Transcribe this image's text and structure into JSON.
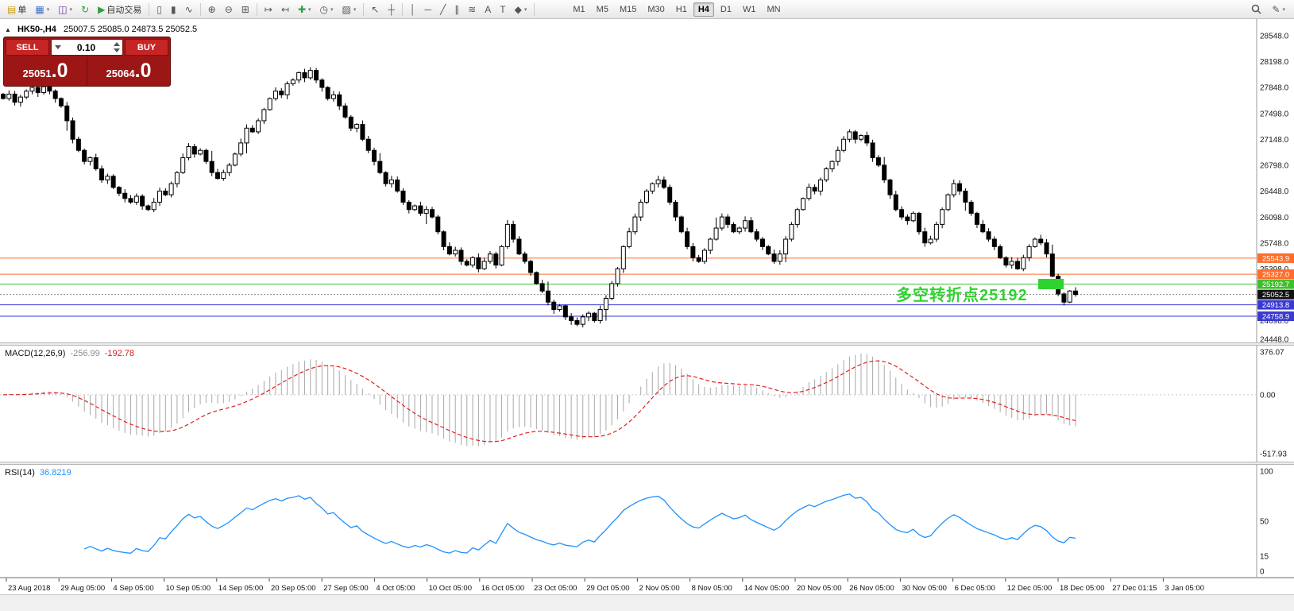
{
  "toolbar": {
    "buttons": [
      {
        "name": "new-order-button",
        "glyph": "▤",
        "glyph_color": "#c8a018",
        "label": "单",
        "caret": false
      },
      {
        "name": "charts-menu-button",
        "glyph": "▦",
        "glyph_color": "#4472c4",
        "caret": true
      },
      {
        "name": "profiles-button",
        "glyph": "◫",
        "glyph_color": "#7030a0",
        "caret": true
      },
      {
        "name": "refresh-button",
        "glyph": "↻",
        "glyph_color": "#2e9e3f",
        "caret": false
      },
      {
        "name": "autotrading-button",
        "glyph": "▶",
        "glyph_color": "#2e9e3f",
        "label": "自动交易",
        "caret": false
      },
      {
        "sep": true
      },
      {
        "name": "bar-chart-button",
        "glyph": "▯"
      },
      {
        "name": "candlestick-button",
        "glyph": "▮"
      },
      {
        "name": "line-chart-button",
        "glyph": "∿"
      },
      {
        "sep": true
      },
      {
        "name": "zoom-in-button",
        "glyph": "⊕"
      },
      {
        "name": "zoom-out-button",
        "glyph": "⊖"
      },
      {
        "name": "tile-windows-button",
        "glyph": "⊞"
      },
      {
        "sep": true
      },
      {
        "name": "chart-shift-button",
        "glyph": "↦"
      },
      {
        "name": "auto-scroll-button",
        "glyph": "↤"
      },
      {
        "name": "indicators-button",
        "glyph": "✚",
        "glyph_color": "#2e9e3f",
        "caret": true
      },
      {
        "name": "periods-button",
        "glyph": "◷",
        "caret": true
      },
      {
        "name": "templates-button",
        "glyph": "▨",
        "caret": true
      },
      {
        "sep": true
      },
      {
        "name": "cursor-button",
        "glyph": "↖"
      },
      {
        "name": "crosshair-button",
        "glyph": "┼"
      },
      {
        "sep": true
      },
      {
        "name": "vertical-line-button",
        "glyph": "│"
      },
      {
        "name": "horizontal-line-button",
        "glyph": "─"
      },
      {
        "name": "trendline-button",
        "glyph": "╱"
      },
      {
        "name": "channel-button",
        "glyph": "∥"
      },
      {
        "name": "fibonacci-button",
        "glyph": "≋"
      },
      {
        "name": "text-button",
        "glyph": "A"
      },
      {
        "name": "text-label-button",
        "glyph": "T"
      },
      {
        "name": "shapes-button",
        "glyph": "◆",
        "caret": true
      },
      {
        "sep": true
      }
    ],
    "timeframes": [
      "M1",
      "M5",
      "M15",
      "M30",
      "H1",
      "H4",
      "D1",
      "W1",
      "MN"
    ],
    "active_timeframe": "H4",
    "styler_glyph": "✎"
  },
  "chart": {
    "header": {
      "collapse_glyph": "▲",
      "symbol": "HK50-,H4",
      "ohlc": "25007.5 25085.0 24873.5 25052.5"
    },
    "trade_panel": {
      "sell_label": "SELL",
      "buy_label": "BUY",
      "lot": "0.10",
      "sell_price_int": "25051",
      "sell_price_frac": ".0",
      "buy_price_int": "25064",
      "buy_price_frac": ".0"
    },
    "macd": {
      "name": "MACD(12,26,9)",
      "v1": "-256.99",
      "v2": "-192.78"
    },
    "rsi": {
      "name": "RSI(14)",
      "v1": "36.8219"
    },
    "annotation": {
      "text": "多空转折点25192",
      "color": "#2fd32f"
    }
  },
  "chart_data": {
    "type": "candlestick",
    "title": "HK50-,H4",
    "current_bar": {
      "open": 25007.5,
      "high": 25085.0,
      "low": 24873.5,
      "close": 25052.5
    },
    "price_axis": {
      "min": 24448.0,
      "max": 28548.0,
      "tick_labels": [
        "28548.0",
        "28198.0",
        "27848.0",
        "27498.0",
        "27148.0",
        "26798.0",
        "26448.0",
        "26098.0",
        "25748.0",
        "25398.0",
        "25048.0",
        "24698.0",
        "24448.0"
      ]
    },
    "x_labels": [
      "23 Aug 2018",
      "29 Aug 05:00",
      "4 Sep 05:00",
      "10 Sep 05:00",
      "14 Sep 05:00",
      "20 Sep 05:00",
      "27 Sep 05:00",
      "4 Oct 05:00",
      "10 Oct 05:00",
      "16 Oct 05:00",
      "23 Oct 05:00",
      "29 Oct 05:00",
      "2 Nov 05:00",
      "8 Nov 05:00",
      "14 Nov 05:00",
      "20 Nov 05:00",
      "26 Nov 05:00",
      "30 Nov 05:00",
      "6 Dec 05:00",
      "12 Dec 05:00",
      "18 Dec 05:00",
      "27 Dec 01:15",
      "3 Jan 05:00"
    ],
    "closes": [
      27700,
      27760,
      27650,
      27720,
      27800,
      27850,
      27780,
      27860,
      27800,
      27700,
      27600,
      27400,
      27150,
      27000,
      26850,
      26900,
      26750,
      26600,
      26650,
      26500,
      26420,
      26350,
      26300,
      26380,
      26250,
      26200,
      26300,
      26450,
      26400,
      26550,
      26700,
      26900,
      27050,
      26950,
      27000,
      26850,
      26700,
      26620,
      26700,
      26800,
      26950,
      27100,
      27300,
      27250,
      27400,
      27550,
      27700,
      27800,
      27750,
      27900,
      27950,
      28050,
      27980,
      28080,
      27950,
      27850,
      27700,
      27750,
      27600,
      27450,
      27300,
      27350,
      27150,
      27000,
      26850,
      26700,
      26550,
      26600,
      26450,
      26300,
      26200,
      26250,
      26150,
      26200,
      26100,
      25900,
      25700,
      25600,
      25650,
      25500,
      25450,
      25550,
      25400,
      25500,
      25600,
      25450,
      25700,
      26000,
      25800,
      25600,
      25500,
      25350,
      25200,
      25100,
      24950,
      24850,
      24900,
      24750,
      24700,
      24650,
      24750,
      24800,
      24700,
      24850,
      25000,
      25200,
      25400,
      25700,
      25900,
      26100,
      26300,
      26450,
      26550,
      26600,
      26500,
      26300,
      26100,
      25900,
      25700,
      25550,
      25500,
      25650,
      25800,
      25950,
      26100,
      26000,
      25900,
      25950,
      26050,
      25900,
      25800,
      25700,
      25600,
      25500,
      25600,
      25800,
      26000,
      26200,
      26350,
      26500,
      26450,
      26600,
      26750,
      26850,
      27000,
      27150,
      27250,
      27150,
      27200,
      27100,
      26900,
      26800,
      26600,
      26400,
      26200,
      26100,
      26050,
      26150,
      25900,
      25750,
      25800,
      26000,
      26200,
      26400,
      26550,
      26450,
      26300,
      26150,
      26000,
      25900,
      25800,
      25700,
      25550,
      25450,
      25500,
      25400,
      25550,
      25700,
      25800,
      25750,
      25600,
      25300,
      25060,
      24950,
      25100,
      25052.5
    ],
    "levels": [
      {
        "price": 25543.9,
        "label": "25543.9",
        "color": "#ff6d2a",
        "style": "solid"
      },
      {
        "price": 25327.0,
        "label": "25327.0",
        "color": "#ff6d2a",
        "style": "solid"
      },
      {
        "price": 25192.7,
        "label": "25192.7",
        "color": "#3fbf2f",
        "style": "solid"
      },
      {
        "price": 25052.5,
        "label": "25052.5",
        "color": "#8a8a8a",
        "tag_bg": "#111111",
        "style": "dotted"
      },
      {
        "price": 24913.8,
        "label": "24913.8",
        "color": "#3a3ad1",
        "style": "solid"
      },
      {
        "price": 24758.9,
        "label": "24758.9",
        "color": "#3a3ad1",
        "style": "solid"
      }
    ],
    "style": {
      "up": "#ffffff",
      "down": "#000000",
      "outline": "#000000"
    },
    "indicators": [
      {
        "type": "MACD",
        "params": [
          12,
          26,
          9
        ],
        "current": [
          -256.99,
          -192.78
        ],
        "axis_labels": [
          "376.07",
          "0.00",
          "-517.93"
        ],
        "histogram_color": "#a8a8a8",
        "signal_color": "#e02020",
        "signal_style": "dashed"
      },
      {
        "type": "RSI",
        "params": [
          14
        ],
        "current": 36.8219,
        "axis_labels": [
          "100",
          "50",
          "15",
          "0"
        ],
        "line_color": "#1e90ff"
      }
    ]
  }
}
